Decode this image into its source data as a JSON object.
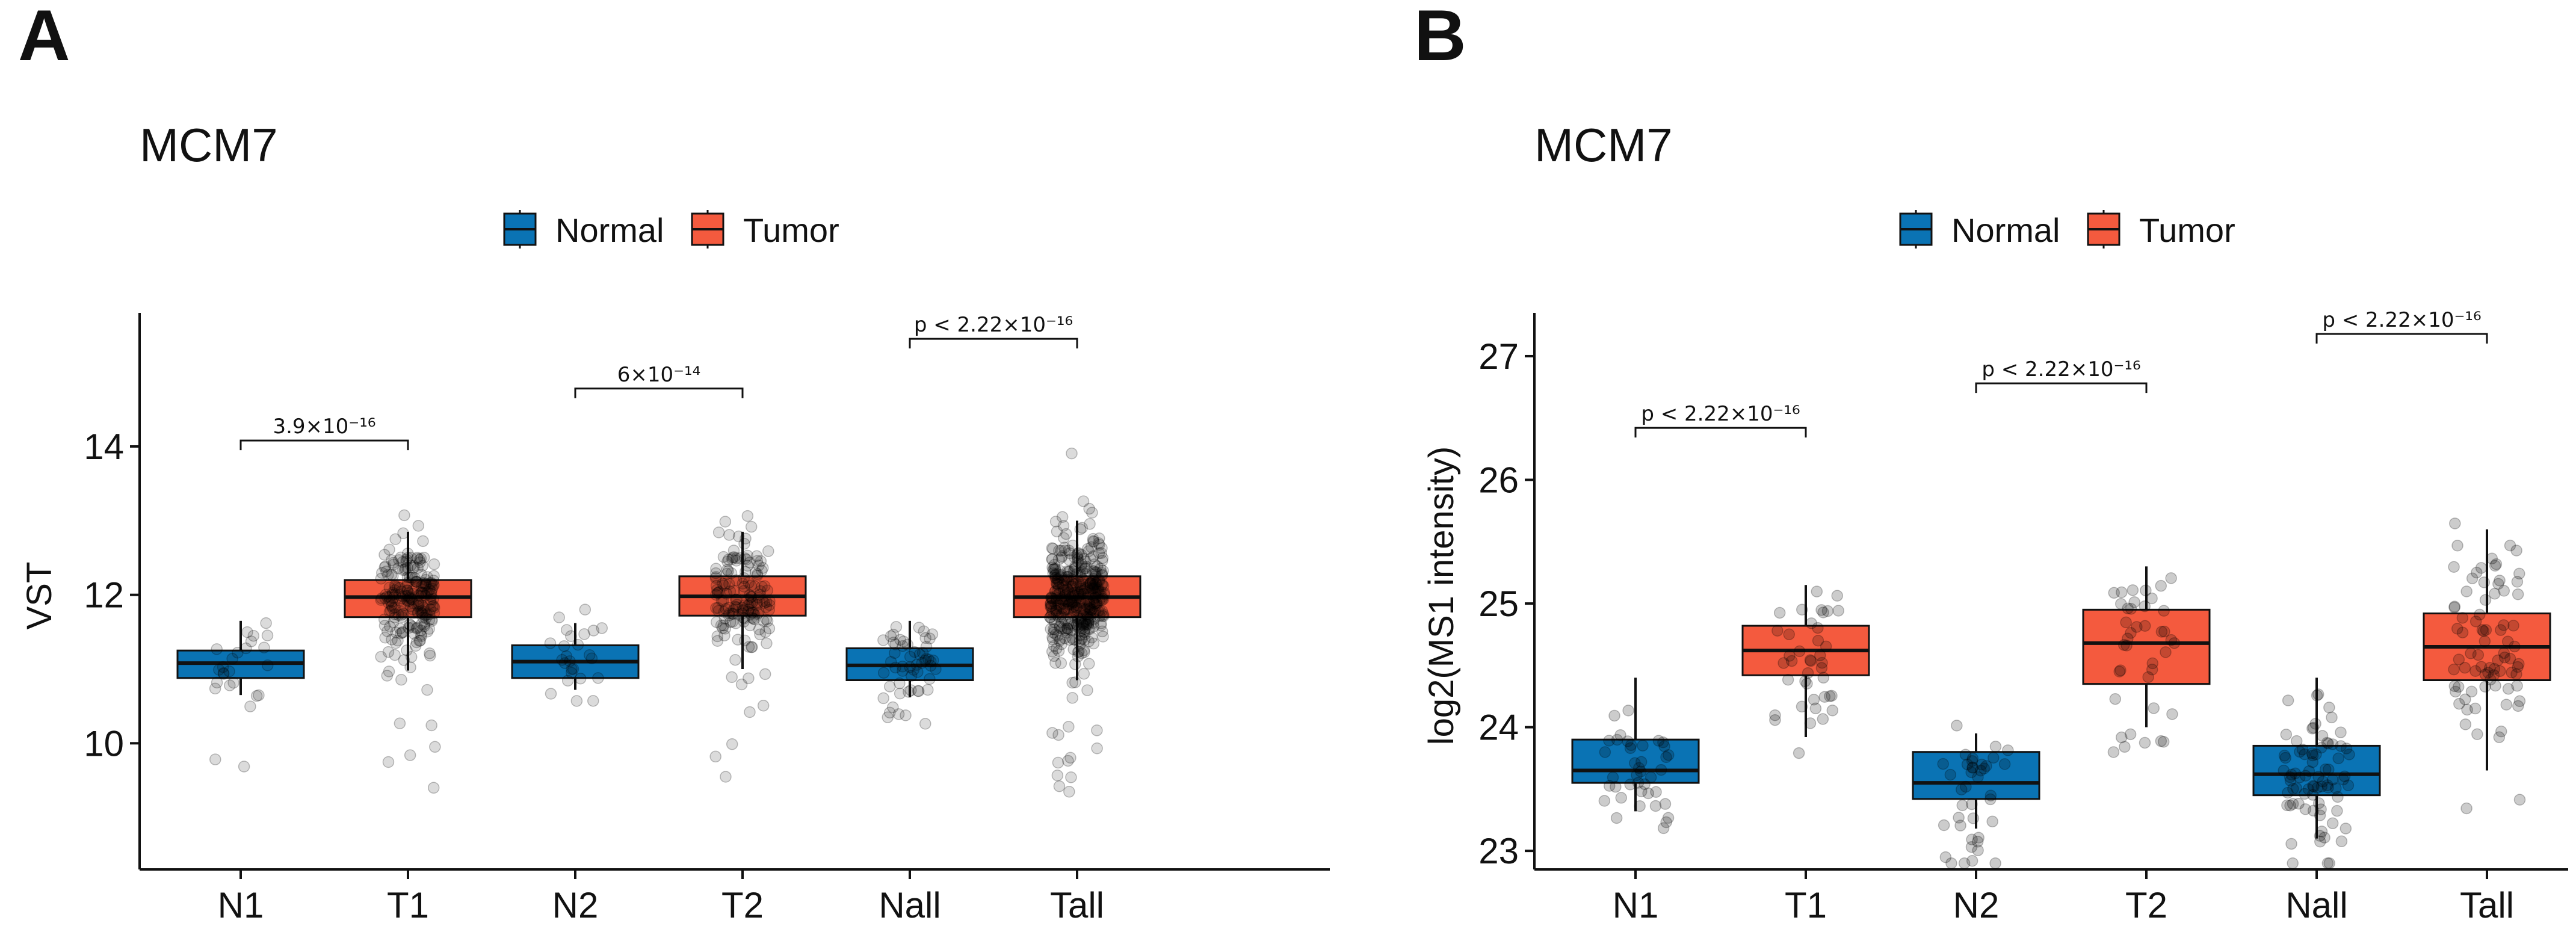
{
  "colors": {
    "normal": "#0a73b4",
    "tumor": "#f45a3e",
    "axis": "#111111",
    "point": "#000000"
  },
  "chart_data": [
    {
      "panel": "A",
      "type": "box",
      "title": "MCM7",
      "ylabel": "VST",
      "xlabel": "",
      "ylim": [
        8.3,
        15.8
      ],
      "yticks": [
        10,
        12,
        14
      ],
      "ytick_labels": [
        "10",
        "12",
        "14"
      ],
      "legend": {
        "position": "top",
        "entries": [
          {
            "label": "Normal",
            "color_key": "normal"
          },
          {
            "label": "Tumor",
            "color_key": "tumor"
          }
        ]
      },
      "categories": [
        "N1",
        "T1",
        "N2",
        "T2",
        "Nall",
        "Tall"
      ],
      "boxes": [
        {
          "group": "N1",
          "fill": "Normal",
          "q1": 10.88,
          "median": 11.08,
          "q3": 11.25,
          "whisker_low": 10.65,
          "whisker_high": 11.65,
          "n_points": 25
        },
        {
          "group": "T1",
          "fill": "Tumor",
          "q1": 11.7,
          "median": 11.97,
          "q3": 12.2,
          "whisker_low": 10.98,
          "whisker_high": 12.85,
          "n_points": 220
        },
        {
          "group": "N2",
          "fill": "Normal",
          "q1": 10.88,
          "median": 11.1,
          "q3": 11.32,
          "whisker_low": 10.72,
          "whisker_high": 11.62,
          "n_points": 25
        },
        {
          "group": "T2",
          "fill": "Tumor",
          "q1": 11.72,
          "median": 11.98,
          "q3": 12.25,
          "whisker_low": 11.0,
          "whisker_high": 12.85,
          "n_points": 160
        },
        {
          "group": "Nall",
          "fill": "Normal",
          "q1": 10.85,
          "median": 11.05,
          "q3": 11.28,
          "whisker_low": 10.62,
          "whisker_high": 11.65,
          "n_points": 55
        },
        {
          "group": "Tall",
          "fill": "Tumor",
          "q1": 11.7,
          "median": 11.97,
          "q3": 12.25,
          "whisker_low": 10.85,
          "whisker_high": 13.0,
          "n_points": 420
        }
      ],
      "comparisons": [
        {
          "from": "N1",
          "to": "T1",
          "label": "3.9×10⁻¹⁶",
          "y": 14.08
        },
        {
          "from": "N2",
          "to": "T2",
          "label": "6×10⁻¹⁴",
          "y": 14.78
        },
        {
          "from": "Nall",
          "to": "Tall",
          "label": "p < 2.22×10⁻¹⁶",
          "y": 15.45
        }
      ]
    },
    {
      "panel": "B",
      "type": "box",
      "title": "MCM7",
      "ylabel": "log2(MS1 intensity)",
      "xlabel": "",
      "ylim": [
        22.85,
        27.35
      ],
      "yticks": [
        23,
        24,
        25,
        26,
        27
      ],
      "ytick_labels": [
        "23",
        "24",
        "25",
        "26",
        "27"
      ],
      "legend": {
        "position": "top",
        "entries": [
          {
            "label": "Normal",
            "color_key": "normal"
          },
          {
            "label": "Tumor",
            "color_key": "tumor"
          }
        ]
      },
      "categories": [
        "N1",
        "T1",
        "N2",
        "T2",
        "Nall",
        "Tall"
      ],
      "boxes": [
        {
          "group": "N1",
          "fill": "Normal",
          "q1": 23.55,
          "median": 23.65,
          "q3": 23.9,
          "whisker_low": 23.32,
          "whisker_high": 24.4,
          "n_points": 40
        },
        {
          "group": "T1",
          "fill": "Tumor",
          "q1": 24.42,
          "median": 24.62,
          "q3": 24.82,
          "whisker_low": 23.92,
          "whisker_high": 25.15,
          "n_points": 40
        },
        {
          "group": "N2",
          "fill": "Normal",
          "q1": 23.42,
          "median": 23.55,
          "q3": 23.8,
          "whisker_low": 23.18,
          "whisker_high": 23.95,
          "n_points": 40
        },
        {
          "group": "T2",
          "fill": "Tumor",
          "q1": 24.35,
          "median": 24.68,
          "q3": 24.95,
          "whisker_low": 24.0,
          "whisker_high": 25.3,
          "n_points": 40
        },
        {
          "group": "Nall",
          "fill": "Normal",
          "q1": 23.45,
          "median": 23.62,
          "q3": 23.85,
          "whisker_low": 23.1,
          "whisker_high": 24.4,
          "n_points": 80
        },
        {
          "group": "Tall",
          "fill": "Tumor",
          "q1": 24.38,
          "median": 24.65,
          "q3": 24.92,
          "whisker_low": 23.65,
          "whisker_high": 25.6,
          "n_points": 80
        }
      ],
      "comparisons": [
        {
          "from": "N1",
          "to": "T1",
          "label": "p < 2.22×10⁻¹⁶",
          "y": 26.42
        },
        {
          "from": "N2",
          "to": "T2",
          "label": "p < 2.22×10⁻¹⁶",
          "y": 26.78
        },
        {
          "from": "Nall",
          "to": "Tall",
          "label": "p < 2.22×10⁻¹⁶",
          "y": 27.18
        }
      ]
    }
  ]
}
